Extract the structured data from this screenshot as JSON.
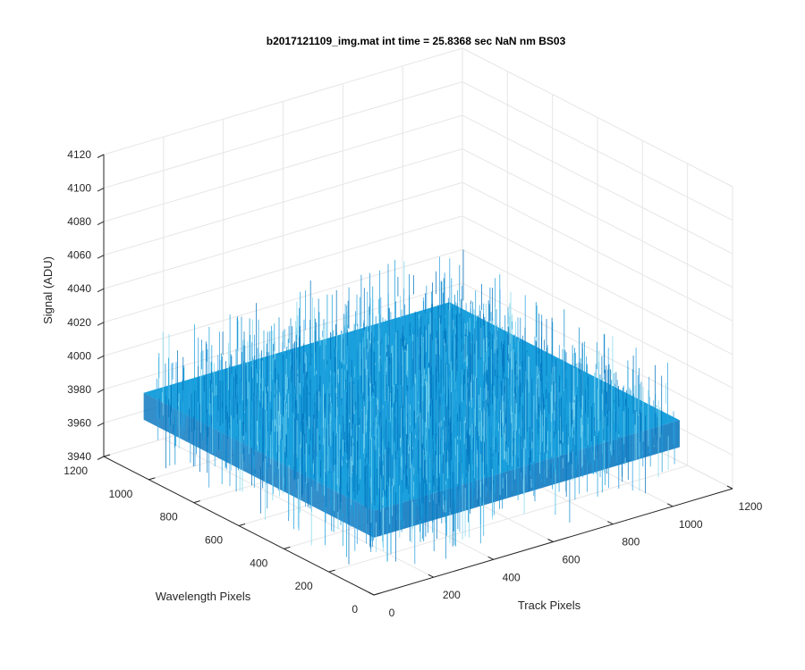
{
  "chart_data": {
    "type": "surface",
    "title": "b2017121109_img.mat int time = 25.8368 sec  NaN nm BS03",
    "xlabel": "Track Pixels",
    "ylabel": "Wavelength Pixels",
    "zlabel": "Signal (ADU)",
    "xlim": [
      0,
      1200
    ],
    "ylim": [
      0,
      1200
    ],
    "zlim": [
      3940,
      4120
    ],
    "xticks": [
      "0",
      "200",
      "400",
      "600",
      "800",
      "1000",
      "1200"
    ],
    "yticks": [
      "0",
      "200",
      "400",
      "600",
      "800",
      "1000",
      "1200"
    ],
    "zticks": [
      "3940",
      "3960",
      "3980",
      "4000",
      "4020",
      "4040",
      "4060",
      "4080",
      "4100",
      "4120"
    ],
    "grid": true,
    "colormap": "parula",
    "data_extent": {
      "x": [
        1,
        1024
      ],
      "y": [
        1,
        1024
      ]
    },
    "signal_mean": 3988,
    "signal_noise_range": [
      3950,
      4030
    ],
    "colors": {
      "surface_low": "#0072BD",
      "surface_mid": "#1AA0DC",
      "surface_high": "#7ED7F0",
      "grid": "#E6E6E6",
      "axis": "#262626"
    }
  }
}
